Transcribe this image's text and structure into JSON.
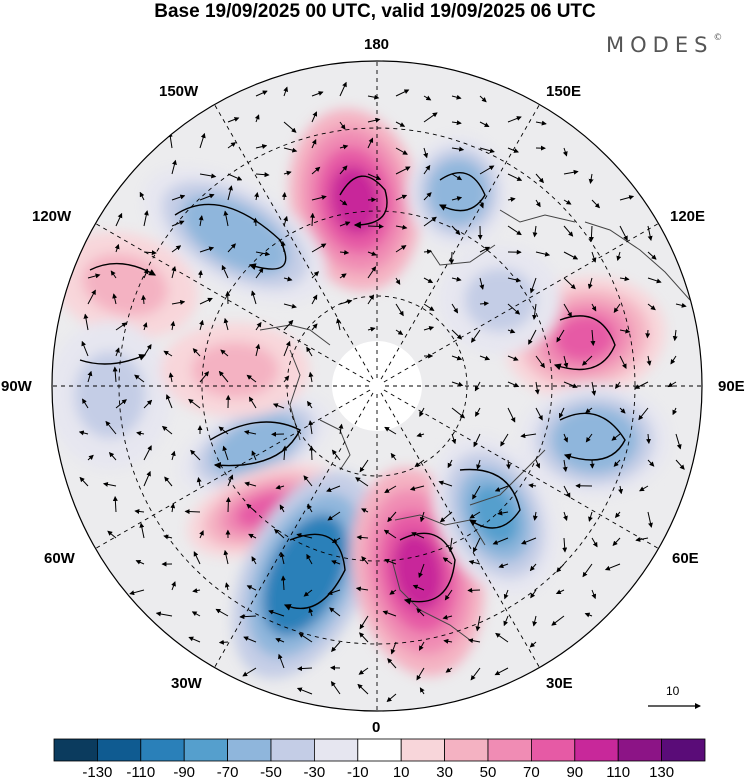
{
  "title": "Base 19/09/2025 00 UTC, valid 19/09/2025 06 UTC",
  "brand": {
    "name": "MODES",
    "mark": "©"
  },
  "longitude_labels": {
    "n180": "180",
    "n150e": "150E",
    "n120e": "120E",
    "n90e": "90E",
    "n60e": "60E",
    "n30e": "30E",
    "n0": "0",
    "n30w": "30W",
    "n60w": "60W",
    "n90w": "90W",
    "n120w": "120W",
    "n150w": "150W"
  },
  "vector_scale_label": "10",
  "colorbar": {
    "colors": [
      "#0b3b5e",
      "#0f5b91",
      "#2a80b9",
      "#559fcd",
      "#8fb6dc",
      "#c4cde6",
      "#e6e6f0",
      "#ffffff",
      "#f8d6da",
      "#f4b2c2",
      "#f08cb4",
      "#e65aa5",
      "#c8289a",
      "#8c1486",
      "#5a0c78"
    ],
    "labels": [
      "-130",
      "-110",
      "-90",
      "-70",
      "-50",
      "-30",
      "-10",
      "10",
      "30",
      "50",
      "70",
      "90",
      "110",
      "130"
    ]
  },
  "anomalies": [
    {
      "name": "pos-north-pacific",
      "value": 90
    },
    {
      "name": "neg-east-siberia",
      "value": -60
    },
    {
      "name": "neg-alaska-gulf",
      "value": -70
    },
    {
      "name": "pos-north-pacific-west",
      "value": 40
    },
    {
      "name": "pos-central-siberia",
      "value": 80
    },
    {
      "name": "neg-west-siberia",
      "value": -40
    },
    {
      "name": "neg-hudson",
      "value": -70
    },
    {
      "name": "neg-canada-east",
      "value": -40
    },
    {
      "name": "pos-canada-arctic",
      "value": 40
    },
    {
      "name": "pos-north-atlantic-west",
      "value": 70
    },
    {
      "name": "neg-north-atlantic",
      "value": -110
    },
    {
      "name": "pos-europe",
      "value": 100
    },
    {
      "name": "neg-russia-west",
      "value": -80
    },
    {
      "name": "neg-kazakhstan",
      "value": -60
    }
  ]
}
